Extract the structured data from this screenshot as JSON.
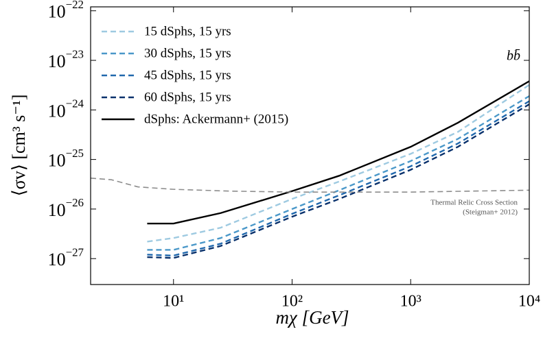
{
  "chart_data": {
    "type": "line",
    "xlabel": "mχ [GeV]",
    "ylabel": "⟨σv⟩ [cm³ s⁻¹]",
    "annotations": [
      "bb̄",
      "Thermal Relic Cross Section",
      "(Steigman+ 2012)"
    ],
    "log_x": true,
    "log_y": true,
    "legend": "upper left",
    "xlim": [
      2,
      10000
    ],
    "ylim": [
      3e-28,
      1.2e-22
    ],
    "xticks": [
      {
        "value": 10,
        "label": "10¹"
      },
      {
        "value": 100,
        "label": "10²"
      },
      {
        "value": 1000,
        "label": "10³"
      },
      {
        "value": 10000,
        "label": "10⁴"
      }
    ],
    "yticks": [
      {
        "value": 1e-27,
        "label": "10−27"
      },
      {
        "value": 1e-26,
        "label": "10−26"
      },
      {
        "value": 1e-25,
        "label": "10−25"
      },
      {
        "value": 1e-24,
        "label": "10−24"
      },
      {
        "value": 1e-23,
        "label": "10−23"
      },
      {
        "value": 1e-22,
        "label": "10−22"
      }
    ],
    "series": [
      {
        "name": "15 dSphs, 15 yrs",
        "color": "#9ecae1",
        "dashed": true,
        "x": [
          6,
          10,
          25,
          100,
          250,
          1000,
          2500,
          10000
        ],
        "values": [
          2.2e-27,
          2.6e-27,
          4.2e-27,
          1.6e-26,
          3.6e-26,
          1.3e-25,
          3.6e-25,
          3.2e-24
        ]
      },
      {
        "name": "30 dSphs, 15 yrs",
        "color": "#4a98c9",
        "dashed": true,
        "x": [
          6,
          10,
          25,
          100,
          250,
          1000,
          2500,
          10000
        ],
        "values": [
          1.5e-27,
          1.5e-27,
          2.6e-27,
          1e-26,
          2.4e-26,
          9.3e-26,
          2.6e-25,
          1.9e-24
        ]
      },
      {
        "name": "45 dSphs, 15 yrs",
        "color": "#2068ad",
        "dashed": true,
        "x": [
          6,
          10,
          25,
          100,
          250,
          1000,
          2500,
          10000
        ],
        "values": [
          1.2e-27,
          1.15e-27,
          2e-27,
          8e-27,
          1.9e-26,
          7.3e-26,
          2.1e-25,
          1.5e-24
        ]
      },
      {
        "name": "60 dSphs, 15 yrs",
        "color": "#08306b",
        "dashed": true,
        "x": [
          6,
          10,
          25,
          100,
          250,
          1000,
          2500,
          10000
        ],
        "values": [
          1.07e-27,
          1.03e-27,
          1.8e-27,
          7e-27,
          1.6e-26,
          6.2e-26,
          1.8e-25,
          1.3e-24
        ]
      },
      {
        "name": "dSphs: Ackermann+ (2015)",
        "color": "#000000",
        "dashed": false,
        "x": [
          6,
          10,
          25,
          100,
          250,
          1000,
          2500,
          10000
        ],
        "values": [
          5.1e-27,
          5.1e-27,
          8.3e-27,
          2.3e-26,
          4.7e-26,
          1.8e-25,
          5.5e-25,
          3.8e-24
        ]
      },
      {
        "color": "#8c8c8c",
        "dashed": true,
        "x": [
          2,
          3,
          5,
          10,
          30,
          100,
          1000,
          10000
        ],
        "values": [
          4.2e-26,
          3.9e-26,
          2.8e-26,
          2.5e-26,
          2.3e-26,
          2.2e-26,
          2.2e-26,
          2.4e-26
        ]
      }
    ]
  }
}
